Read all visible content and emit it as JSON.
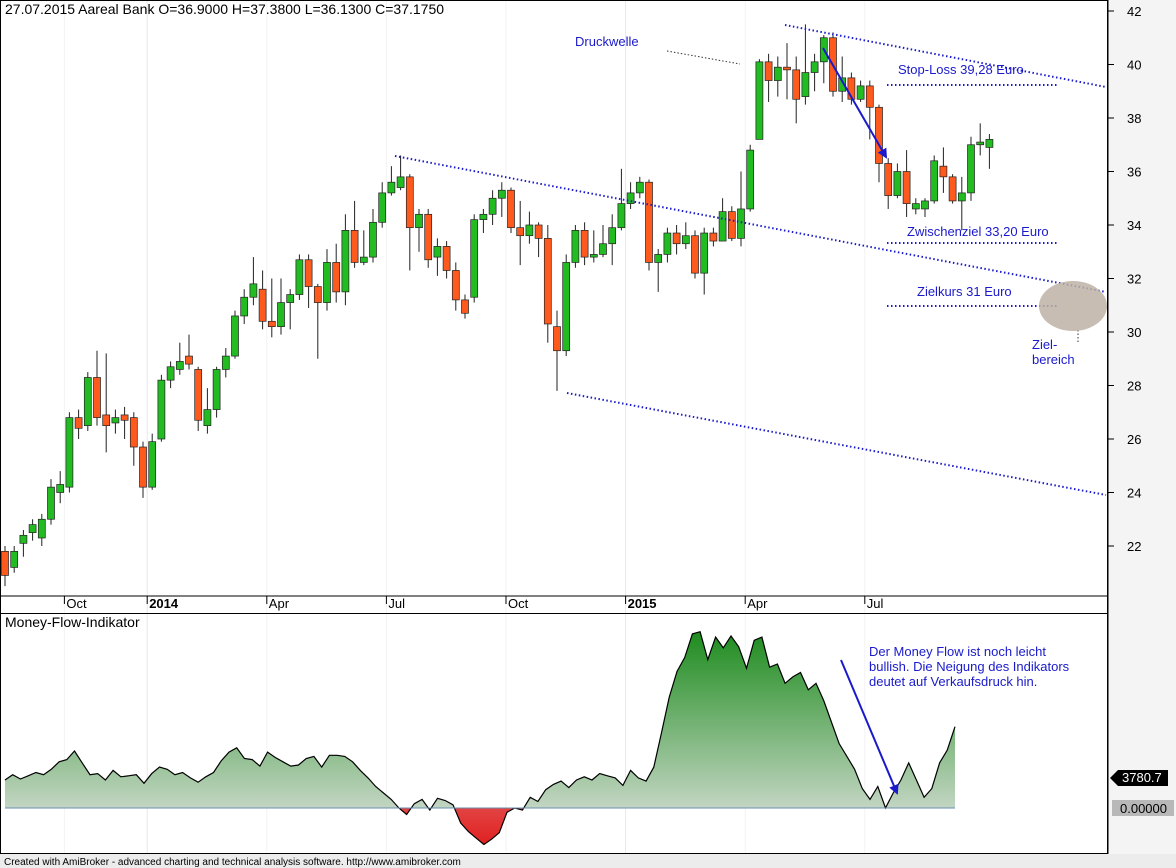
{
  "header": {
    "text": "27.07.2015 Aareal Bank  O=36.9000  H=37.3800  L=36.1300  C=37.1750"
  },
  "indicator_title": "Money-Flow-Indikator",
  "footer": "Created with AmiBroker - advanced charting and technical analysis software. http://www.amibroker.com",
  "colors": {
    "up": "#22bb22",
    "down": "#ff5a1e",
    "annotation": "#1a1acc",
    "mf_positive": "#1e8c1e",
    "mf_negative": "#e02020",
    "target_zone": "#bdb2a6"
  },
  "annotations": {
    "druckwelle": "Druckwelle",
    "stop_loss": "Stop-Loss 39,28 Euro",
    "zwischenziel": "Zwischenziel 33,20 Euro",
    "zielkurs": "Zielkurs 31 Euro",
    "ziel_line1": "Ziel-",
    "ziel_line2": "bereich",
    "mf_note_line1": "Der Money Flow ist noch leicht",
    "mf_note_line2": "bullish. Die Neigung des Indikators",
    "mf_note_line3": "deutet auf Verkaufsdruck hin."
  },
  "chart_data": [
    {
      "type": "candlestick",
      "title": "Aareal Bank",
      "date": "27.07.2015",
      "ohlc_last": {
        "open": 36.9,
        "high": 37.38,
        "low": 36.13,
        "close": 37.175
      },
      "ylim": [
        20,
        42.5
      ],
      "yticks": [
        22,
        24,
        26,
        28,
        30,
        32,
        34,
        36,
        38,
        40,
        42
      ],
      "xtick_labels": [
        {
          "label": "Oct",
          "bold": false,
          "week": 7
        },
        {
          "label": "2014",
          "bold": true,
          "week": 16
        },
        {
          "label": "Apr",
          "bold": false,
          "week": 29
        },
        {
          "label": "Jul",
          "bold": false,
          "week": 42
        },
        {
          "label": "Oct",
          "bold": false,
          "week": 55
        },
        {
          "label": "2015",
          "bold": true,
          "week": 68
        },
        {
          "label": "Apr",
          "bold": false,
          "week": 81
        },
        {
          "label": "Jul",
          "bold": false,
          "week": 94
        }
      ],
      "candles": [
        [
          21.8,
          20.9,
          22.0,
          20.5
        ],
        [
          21.2,
          21.8,
          22.0,
          21.0
        ],
        [
          22.1,
          22.4,
          22.6,
          21.6
        ],
        [
          22.5,
          22.8,
          23.0,
          22.2
        ],
        [
          22.3,
          23.0,
          23.2,
          22.0
        ],
        [
          23.0,
          24.2,
          24.5,
          22.8
        ],
        [
          24.0,
          24.3,
          24.8,
          23.6
        ],
        [
          24.2,
          26.8,
          27.0,
          24.0
        ],
        [
          26.8,
          26.4,
          27.1,
          26.0
        ],
        [
          26.5,
          28.3,
          28.5,
          26.3
        ],
        [
          28.3,
          26.8,
          29.3,
          26.5
        ],
        [
          26.9,
          26.5,
          29.2,
          25.5
        ],
        [
          26.6,
          26.8,
          27.1,
          26.2
        ],
        [
          26.9,
          26.7,
          27.2,
          26.0
        ],
        [
          26.8,
          25.7,
          27.0,
          25.0
        ],
        [
          25.7,
          24.2,
          25.9,
          23.8
        ],
        [
          24.2,
          25.9,
          26.2,
          24.1
        ],
        [
          26.0,
          28.2,
          28.4,
          25.9
        ],
        [
          28.2,
          28.7,
          28.9,
          27.9
        ],
        [
          28.6,
          28.9,
          29.6,
          28.4
        ],
        [
          29.1,
          28.8,
          29.9,
          28.6
        ],
        [
          28.6,
          26.7,
          28.7,
          26.3
        ],
        [
          26.5,
          27.1,
          27.9,
          26.2
        ],
        [
          27.1,
          28.6,
          28.7,
          26.8
        ],
        [
          28.6,
          29.1,
          29.4,
          28.3
        ],
        [
          29.1,
          30.6,
          30.8,
          29.0
        ],
        [
          30.6,
          31.3,
          31.6,
          30.3
        ],
        [
          31.3,
          31.8,
          32.8,
          31.0
        ],
        [
          31.6,
          30.4,
          32.3,
          30.1
        ],
        [
          30.4,
          30.2,
          32.0,
          29.8
        ],
        [
          30.2,
          31.1,
          32.0,
          29.9
        ],
        [
          31.1,
          31.4,
          31.6,
          30.1
        ],
        [
          31.4,
          32.7,
          32.9,
          31.2
        ],
        [
          32.7,
          31.7,
          32.9,
          30.9
        ],
        [
          31.7,
          31.1,
          31.8,
          29.0
        ],
        [
          31.1,
          32.6,
          33.1,
          30.8
        ],
        [
          32.6,
          31.5,
          33.3,
          31.1
        ],
        [
          31.5,
          33.8,
          34.4,
          31.0
        ],
        [
          33.8,
          32.6,
          34.9,
          32.4
        ],
        [
          32.6,
          32.8,
          33.8,
          32.5
        ],
        [
          32.8,
          34.1,
          34.6,
          32.6
        ],
        [
          34.1,
          35.2,
          35.6,
          33.9
        ],
        [
          35.2,
          35.6,
          36.2,
          35.1
        ],
        [
          35.4,
          35.8,
          36.6,
          35.3
        ],
        [
          35.8,
          33.9,
          35.9,
          32.3
        ],
        [
          33.9,
          34.4,
          34.6,
          33.0
        ],
        [
          34.4,
          32.7,
          34.6,
          32.4
        ],
        [
          32.8,
          33.2,
          33.5,
          32.1
        ],
        [
          33.2,
          32.3,
          33.4,
          32.0
        ],
        [
          32.3,
          31.2,
          32.6,
          30.8
        ],
        [
          31.2,
          30.7,
          31.4,
          30.5
        ],
        [
          31.3,
          34.2,
          34.4,
          31.1
        ],
        [
          34.2,
          34.4,
          34.6,
          33.7
        ],
        [
          34.4,
          35.0,
          35.3,
          34.0
        ],
        [
          35.0,
          35.3,
          35.6,
          34.3
        ],
        [
          35.3,
          33.9,
          35.4,
          33.7
        ],
        [
          33.9,
          33.6,
          34.9,
          32.5
        ],
        [
          33.6,
          34.0,
          34.5,
          33.3
        ],
        [
          34.0,
          33.5,
          34.1,
          32.8
        ],
        [
          33.5,
          30.3,
          34.0,
          29.6
        ],
        [
          30.2,
          29.3,
          30.8,
          27.8
        ],
        [
          29.3,
          32.6,
          32.9,
          29.1
        ],
        [
          32.6,
          33.8,
          34.0,
          32.4
        ],
        [
          33.8,
          32.8,
          34.1,
          32.5
        ],
        [
          32.8,
          32.9,
          33.8,
          32.6
        ],
        [
          32.9,
          33.3,
          34.0,
          32.8
        ],
        [
          33.3,
          33.9,
          34.4,
          32.5
        ],
        [
          33.9,
          34.8,
          36.1,
          33.8
        ],
        [
          34.8,
          35.2,
          35.6,
          34.6
        ],
        [
          35.2,
          35.6,
          35.8,
          35.0
        ],
        [
          35.6,
          32.6,
          35.7,
          32.3
        ],
        [
          32.6,
          32.9,
          33.1,
          31.5
        ],
        [
          32.9,
          33.7,
          33.9,
          32.6
        ],
        [
          33.7,
          33.3,
          34.0,
          32.9
        ],
        [
          33.3,
          33.6,
          34.1,
          33.1
        ],
        [
          33.6,
          32.2,
          33.8,
          32.0
        ],
        [
          32.2,
          33.7,
          33.9,
          31.4
        ],
        [
          33.7,
          33.4,
          33.9,
          33.2
        ],
        [
          33.4,
          34.5,
          35.0,
          33.4
        ],
        [
          34.5,
          33.5,
          34.7,
          33.4
        ],
        [
          33.5,
          34.6,
          36.0,
          33.2
        ],
        [
          34.6,
          36.8,
          37.0,
          34.5
        ],
        [
          37.2,
          40.1,
          40.2,
          37.5
        ],
        [
          40.1,
          39.4,
          40.4,
          38.6
        ],
        [
          39.4,
          39.9,
          40.3,
          38.8
        ],
        [
          39.9,
          39.8,
          40.8,
          38.7
        ],
        [
          39.8,
          38.7,
          40.3,
          37.8
        ],
        [
          38.8,
          39.7,
          41.5,
          38.5
        ],
        [
          39.7,
          40.1,
          40.4,
          39.0
        ],
        [
          40.1,
          41.0,
          41.1,
          39.3
        ],
        [
          41.0,
          39.0,
          41.2,
          38.8
        ],
        [
          39.0,
          39.5,
          40.3,
          38.6
        ],
        [
          39.5,
          38.7,
          39.7,
          38.5
        ],
        [
          38.7,
          39.2,
          39.4,
          38.6
        ],
        [
          39.2,
          38.4,
          39.4,
          37.2
        ],
        [
          38.4,
          36.3,
          38.5,
          35.6
        ],
        [
          36.3,
          35.1,
          36.5,
          34.6
        ],
        [
          35.1,
          36.0,
          36.3,
          35.0
        ],
        [
          36.0,
          34.8,
          36.8,
          34.3
        ],
        [
          34.6,
          34.8,
          35.0,
          34.4
        ],
        [
          34.6,
          34.9,
          35.0,
          34.3
        ],
        [
          34.9,
          36.4,
          36.6,
          34.8
        ],
        [
          36.2,
          35.8,
          36.9,
          35.2
        ],
        [
          35.8,
          34.9,
          35.9,
          34.8
        ],
        [
          34.9,
          35.2,
          35.8,
          33.8
        ],
        [
          35.2,
          37.0,
          37.3,
          34.9
        ],
        [
          37.0,
          37.1,
          37.8,
          36.6
        ],
        [
          36.9,
          37.2,
          37.4,
          36.1
        ]
      ]
    },
    {
      "type": "area",
      "title": "Money-Flow-Indikator",
      "last_value": "3780.7",
      "zero_label": "0.00000",
      "values": [
        1300,
        1550,
        1350,
        1500,
        1650,
        1550,
        1800,
        2150,
        2250,
        2650,
        2100,
        1550,
        1600,
        1300,
        1750,
        1450,
        1500,
        1550,
        1150,
        1600,
        1900,
        1800,
        1550,
        1650,
        1400,
        1200,
        1450,
        1650,
        2200,
        2600,
        2800,
        2300,
        2250,
        1950,
        2600,
        2350,
        2150,
        1950,
        2000,
        2300,
        2400,
        1900,
        2450,
        2450,
        2400,
        2150,
        1750,
        1400,
        1000,
        700,
        400,
        0,
        -300,
        200,
        400,
        -100,
        450,
        350,
        150,
        -700,
        -1100,
        -1400,
        -1700,
        -1450,
        -1150,
        -200,
        0,
        -100,
        500,
        300,
        850,
        1100,
        1250,
        950,
        1300,
        1450,
        1300,
        1600,
        1500,
        1400,
        1050,
        1750,
        1400,
        1250,
        1900,
        3500,
        5150,
        6350,
        7000,
        8100,
        8200,
        6900,
        7950,
        7450,
        8000,
        7500,
        6500,
        7800,
        7950,
        6550,
        6700,
        5800,
        6100,
        6300,
        5500,
        5800,
        5000,
        4000,
        3000,
        2400,
        1800,
        900,
        400,
        1000,
        0,
        700,
        1300,
        2100,
        1300,
        500,
        900,
        2100,
        2700,
        3780.7
      ]
    }
  ]
}
